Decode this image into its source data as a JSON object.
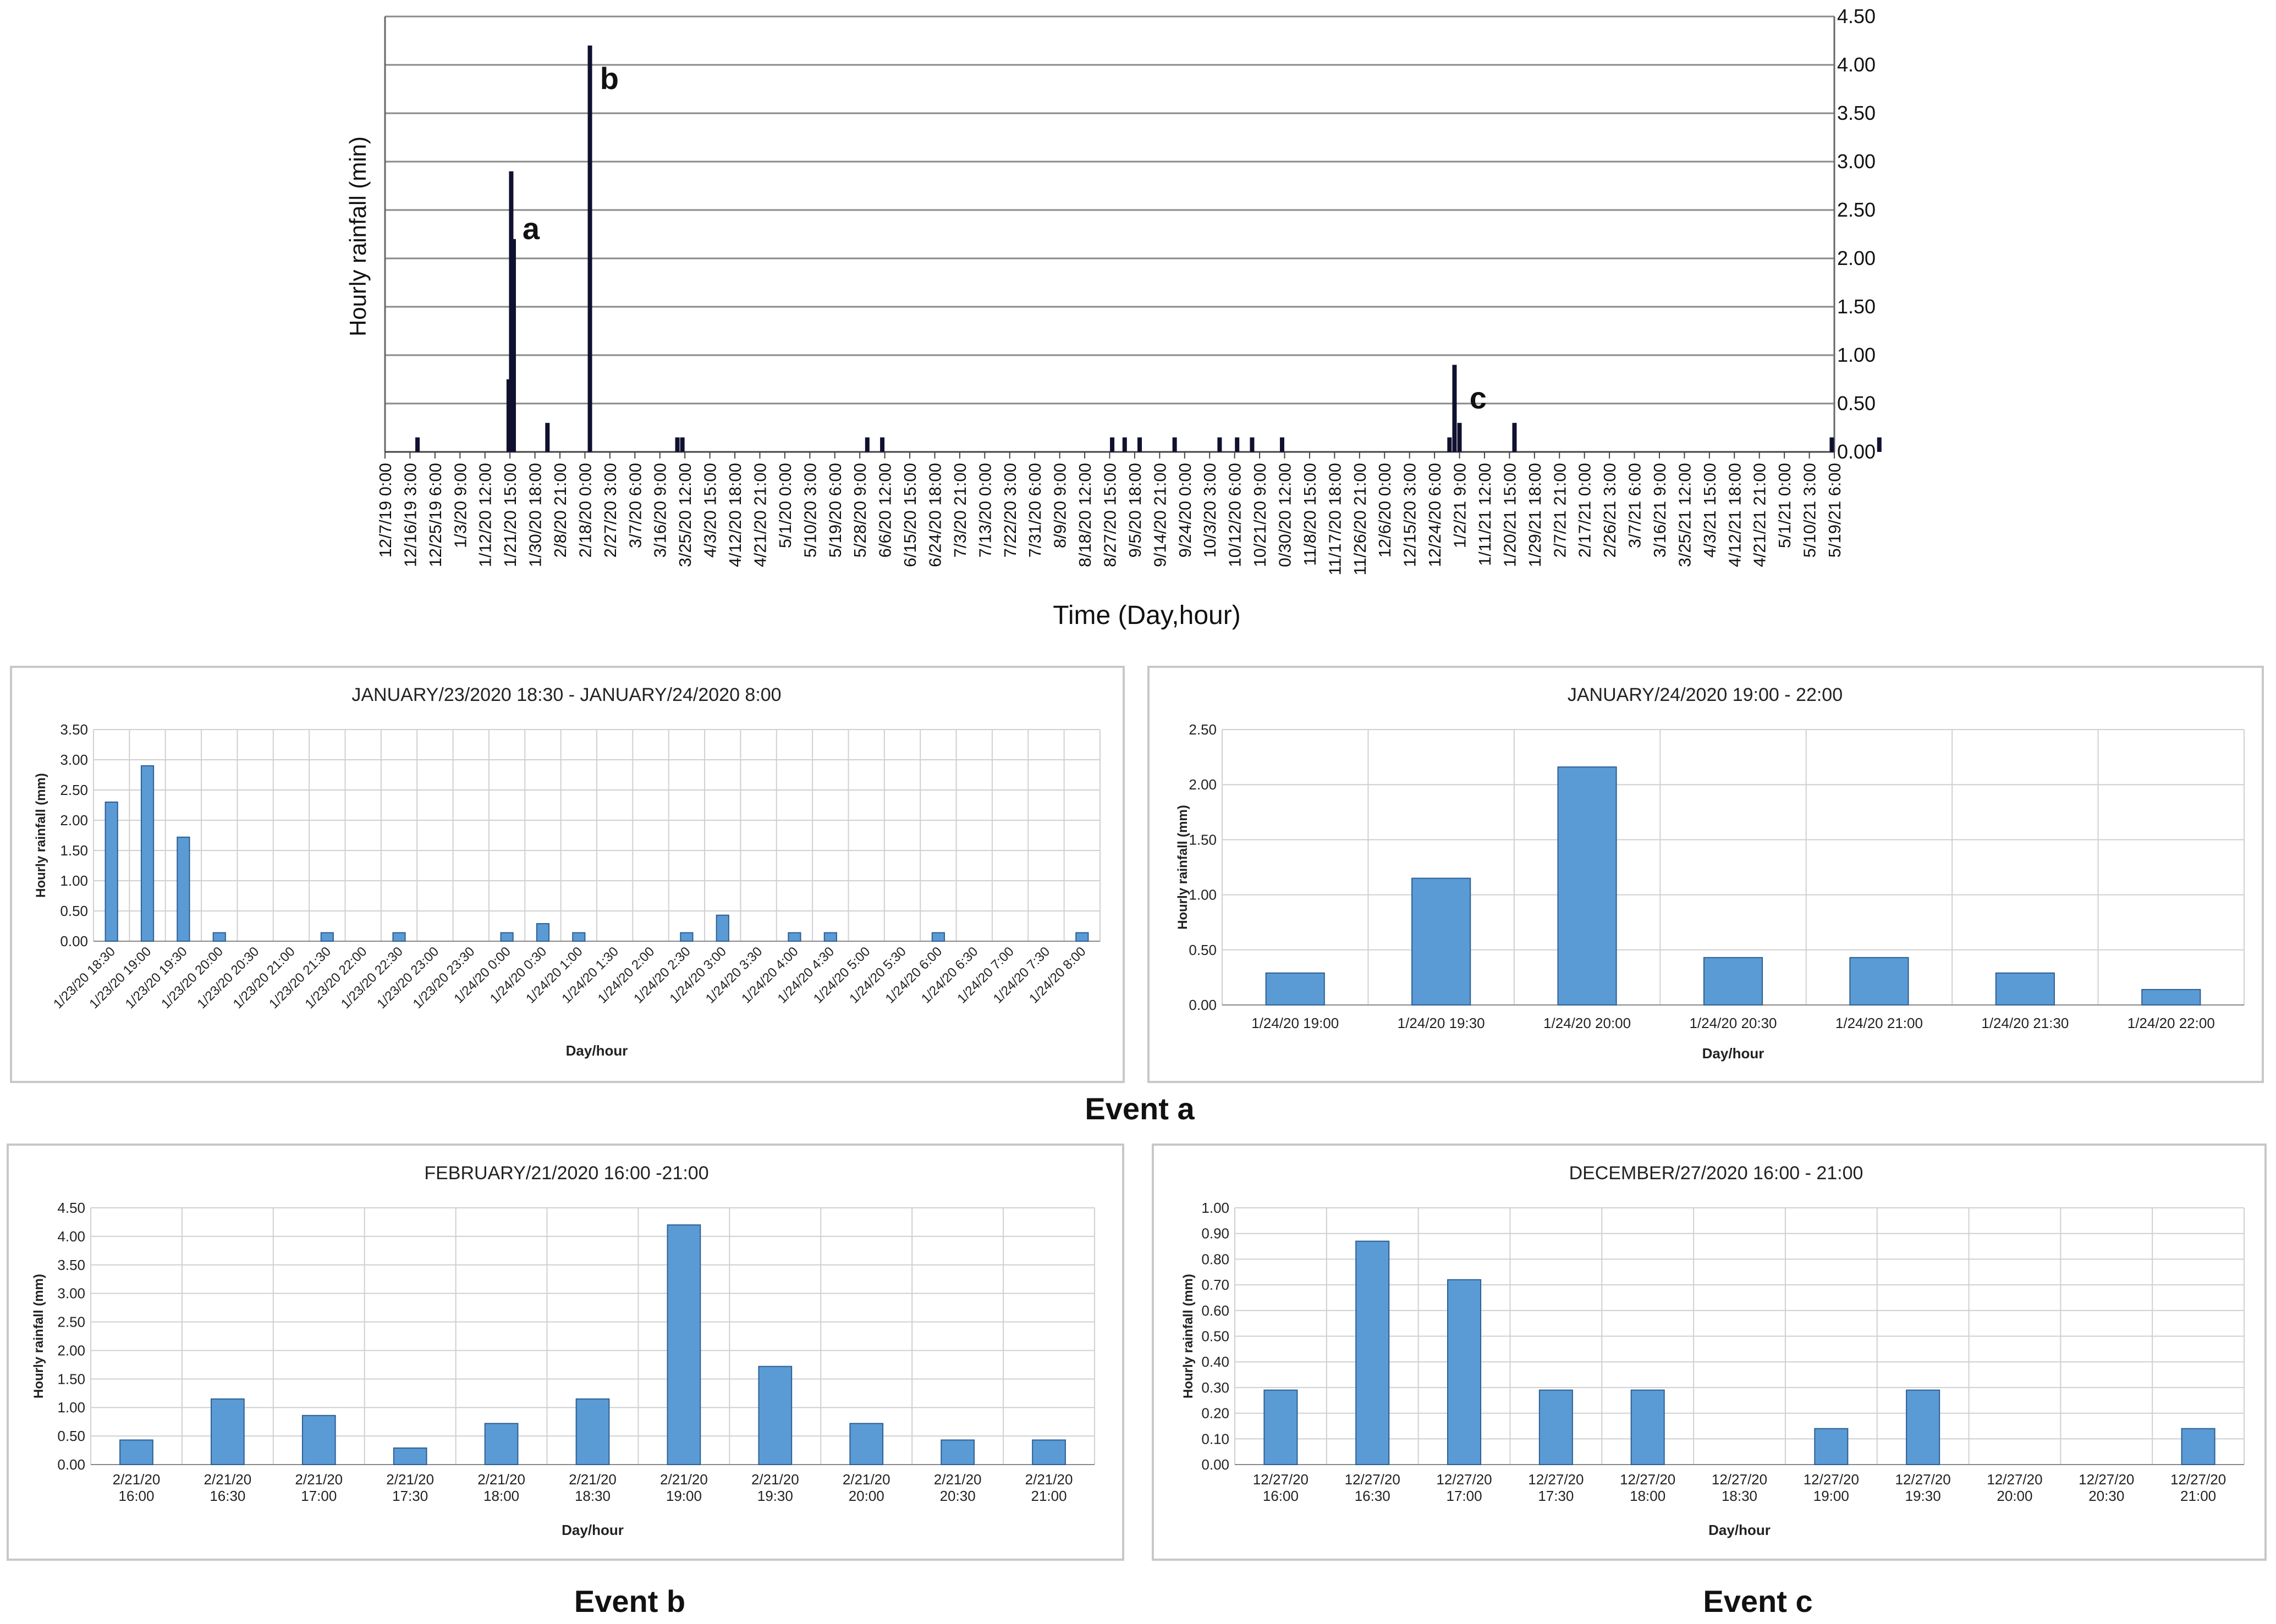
{
  "chart_data": [
    {
      "id": "overview",
      "type": "bar",
      "title": "",
      "xlabel": "Time (Day,hour)",
      "ylabel": "Hourly rainfall (min)",
      "ylim": [
        0,
        4.5
      ],
      "yticks": [
        "0.00",
        "0.50",
        "1.00",
        "1.50",
        "2.00",
        "2.50",
        "3.00",
        "3.50",
        "4.00",
        "4.50"
      ],
      "x_tick_labels": [
        "12/7/19 0:00",
        "12/16/19 3:00",
        "12/25/19 6:00",
        "1/3/20 9:00",
        "1/12/20 12:00",
        "1/21/20 15:00",
        "1/30/20 18:00",
        "2/8/20 21:00",
        "2/18/20 0:00",
        "2/27/20 3:00",
        "3/7/20 6:00",
        "3/16/20 9:00",
        "3/25/20 12:00",
        "4/3/20 15:00",
        "4/12/20 18:00",
        "4/21/20 21:00",
        "5/1/20 0:00",
        "5/10/20 3:00",
        "5/19/20 6:00",
        "5/28/20 9:00",
        "6/6/20 12:00",
        "6/15/20 15:00",
        "6/24/20 18:00",
        "7/3/20 21:00",
        "7/13/20 0:00",
        "7/22/20 3:00",
        "7/31/20 6:00",
        "8/9/20 9:00",
        "8/18/20 12:00",
        "8/27/20 15:00",
        "9/5/20 18:00",
        "9/14/20 21:00",
        "9/24/20 0:00",
        "10/3/20 3:00",
        "10/12/20 6:00",
        "10/21/20 9:00",
        "0/30/20 12:00",
        "11/8/20 15:00",
        "11/17/20 18:00",
        "11/26/20 21:00",
        "12/6/20 0:00",
        "12/15/20 3:00",
        "12/24/20 6:00",
        "1/2/21 9:00",
        "1/11/21 12:00",
        "1/20/21 15:00",
        "1/29/21 18:00",
        "2/7/21 21:00",
        "2/17/21 0:00",
        "2/26/21 3:00",
        "3/7/21 6:00",
        "3/16/21 9:00",
        "3/25/21 12:00",
        "4/3/21 15:00",
        "4/12/21 18:00",
        "4/21/21 21:00",
        "5/1/21 0:00",
        "5/10/21 3:00",
        "5/19/21 6:00"
      ],
      "series": [
        {
          "name": "Hourly rainfall",
          "points": [
            {
              "pos": 1.3,
              "value": 0.15
            },
            {
              "pos": 4.95,
              "value": 0.75
            },
            {
              "pos": 5.05,
              "value": 2.9
            },
            {
              "pos": 5.15,
              "value": 2.2
            },
            {
              "pos": 6.5,
              "value": 0.3
            },
            {
              "pos": 8.2,
              "value": 4.2
            },
            {
              "pos": 11.7,
              "value": 0.15
            },
            {
              "pos": 11.9,
              "value": 0.15
            },
            {
              "pos": 19.3,
              "value": 0.15
            },
            {
              "pos": 19.9,
              "value": 0.15
            },
            {
              "pos": 29.1,
              "value": 0.15
            },
            {
              "pos": 29.6,
              "value": 0.15
            },
            {
              "pos": 30.2,
              "value": 0.15
            },
            {
              "pos": 31.6,
              "value": 0.15
            },
            {
              "pos": 33.4,
              "value": 0.15
            },
            {
              "pos": 34.1,
              "value": 0.15
            },
            {
              "pos": 34.7,
              "value": 0.15
            },
            {
              "pos": 35.9,
              "value": 0.15
            },
            {
              "pos": 42.6,
              "value": 0.15
            },
            {
              "pos": 42.8,
              "value": 0.9
            },
            {
              "pos": 43.0,
              "value": 0.3
            },
            {
              "pos": 45.2,
              "value": 0.3
            },
            {
              "pos": 57.9,
              "value": 0.15
            },
            {
              "pos": 59.8,
              "value": 0.15
            }
          ]
        }
      ],
      "annotations": [
        {
          "text": "a",
          "pos": 5.5,
          "value": 2.2
        },
        {
          "text": "b",
          "pos": 8.6,
          "value": 3.75
        },
        {
          "text": "c",
          "pos": 43.4,
          "value": 0.45
        }
      ]
    },
    {
      "id": "event_a_1",
      "type": "bar",
      "title": "JANUARY/23/2020 18:30 - JANUARY/24/2020 8:00",
      "xlabel": "Day/hour",
      "ylabel": "Hourly rainfall (mm)",
      "ylim": [
        0,
        3.5
      ],
      "yticks": [
        "0.00",
        "0.50",
        "1.00",
        "1.50",
        "2.00",
        "2.50",
        "3.00",
        "3.50"
      ],
      "categories": [
        "1/23/20 18:30",
        "1/23/20 19:00",
        "1/23/20 19:30",
        "1/23/20 20:00",
        "1/23/20 20:30",
        "1/23/20 21:00",
        "1/23/20 21:30",
        "1/23/20 22:00",
        "1/23/20 22:30",
        "1/23/20 23:00",
        "1/23/20 23:30",
        "1/24/20 0:00",
        "1/24/20 0:30",
        "1/24/20 1:00",
        "1/24/20 1:30",
        "1/24/20 2:00",
        "1/24/20 2:30",
        "1/24/20 3:00",
        "1/24/20 3:30",
        "1/24/20 4:00",
        "1/24/20 4:30",
        "1/24/20 5:00",
        "1/24/20 5:30",
        "1/24/20 6:00",
        "1/24/20 6:30",
        "1/24/20 7:00",
        "1/24/20 7:30",
        "1/24/20 8:00"
      ],
      "values": [
        2.3,
        2.9,
        1.72,
        0.14,
        0,
        0,
        0.14,
        0,
        0.14,
        0,
        0,
        0.14,
        0.29,
        0.14,
        0,
        0,
        0.14,
        0.43,
        0,
        0.14,
        0.14,
        0,
        0,
        0.14,
        0,
        0,
        0,
        0.14
      ]
    },
    {
      "id": "event_a_2",
      "type": "bar",
      "title": "JANUARY/24/2020 19:00 - 22:00",
      "xlabel": "Day/hour",
      "ylabel": "Hourly rainfall (mm)",
      "ylim": [
        0,
        2.5
      ],
      "yticks": [
        "0.00",
        "0.50",
        "1.00",
        "1.50",
        "2.00",
        "2.50"
      ],
      "categories": [
        "1/24/20 19:00",
        "1/24/20 19:30",
        "1/24/20 20:00",
        "1/24/20 20:30",
        "1/24/20 21:00",
        "1/24/20 21:30",
        "1/24/20 22:00"
      ],
      "values": [
        0.29,
        1.15,
        2.16,
        0.43,
        0.43,
        0.29,
        0.14
      ]
    },
    {
      "id": "event_b",
      "type": "bar",
      "title": "FEBRUARY/21/2020 16:00 -21:00",
      "xlabel": "Day/hour",
      "ylabel": "Hourly rainfall (mm)",
      "ylim": [
        0,
        4.5
      ],
      "yticks": [
        "0.00",
        "0.50",
        "1.00",
        "1.50",
        "2.00",
        "2.50",
        "3.00",
        "3.50",
        "4.00",
        "4.50"
      ],
      "categories": [
        [
          "2/21/20",
          "16:00"
        ],
        [
          "2/21/20",
          "16:30"
        ],
        [
          "2/21/20",
          "17:00"
        ],
        [
          "2/21/20",
          "17:30"
        ],
        [
          "2/21/20",
          "18:00"
        ],
        [
          "2/21/20",
          "18:30"
        ],
        [
          "2/21/20",
          "19:00"
        ],
        [
          "2/21/20",
          "19:30"
        ],
        [
          "2/21/20",
          "20:00"
        ],
        [
          "2/21/20",
          "20:30"
        ],
        [
          "2/21/20",
          "21:00"
        ]
      ],
      "values": [
        0.43,
        1.15,
        0.86,
        0.29,
        0.72,
        1.15,
        4.2,
        1.72,
        0.72,
        0.43,
        0.43
      ]
    },
    {
      "id": "event_c",
      "type": "bar",
      "title": "DECEMBER/27/2020 16:00 - 21:00",
      "xlabel": "Day/hour",
      "ylabel": "Hourly rainfall (mm)",
      "ylim": [
        0,
        1.0
      ],
      "yticks": [
        "0.00",
        "0.10",
        "0.20",
        "0.30",
        "0.40",
        "0.50",
        "0.60",
        "0.70",
        "0.80",
        "0.90",
        "1.00"
      ],
      "categories": [
        [
          "12/27/20",
          "16:00"
        ],
        [
          "12/27/20",
          "16:30"
        ],
        [
          "12/27/20",
          "17:00"
        ],
        [
          "12/27/20",
          "17:30"
        ],
        [
          "12/27/20",
          "18:00"
        ],
        [
          "12/27/20",
          "18:30"
        ],
        [
          "12/27/20",
          "19:00"
        ],
        [
          "12/27/20",
          "19:30"
        ],
        [
          "12/27/20",
          "20:00"
        ],
        [
          "12/27/20",
          "20:30"
        ],
        [
          "12/27/20",
          "21:00"
        ]
      ],
      "values": [
        0.29,
        0.87,
        0.72,
        0.29,
        0.29,
        0,
        0.14,
        0.29,
        0,
        0,
        0.14
      ]
    }
  ],
  "captions": {
    "event_a": "Event a",
    "event_b": "Event b",
    "event_c": "Event c"
  },
  "colors": {
    "bar_fill": "#5b9bd5",
    "bar_stroke": "#2e5f93",
    "overview_bar": "#101030"
  }
}
